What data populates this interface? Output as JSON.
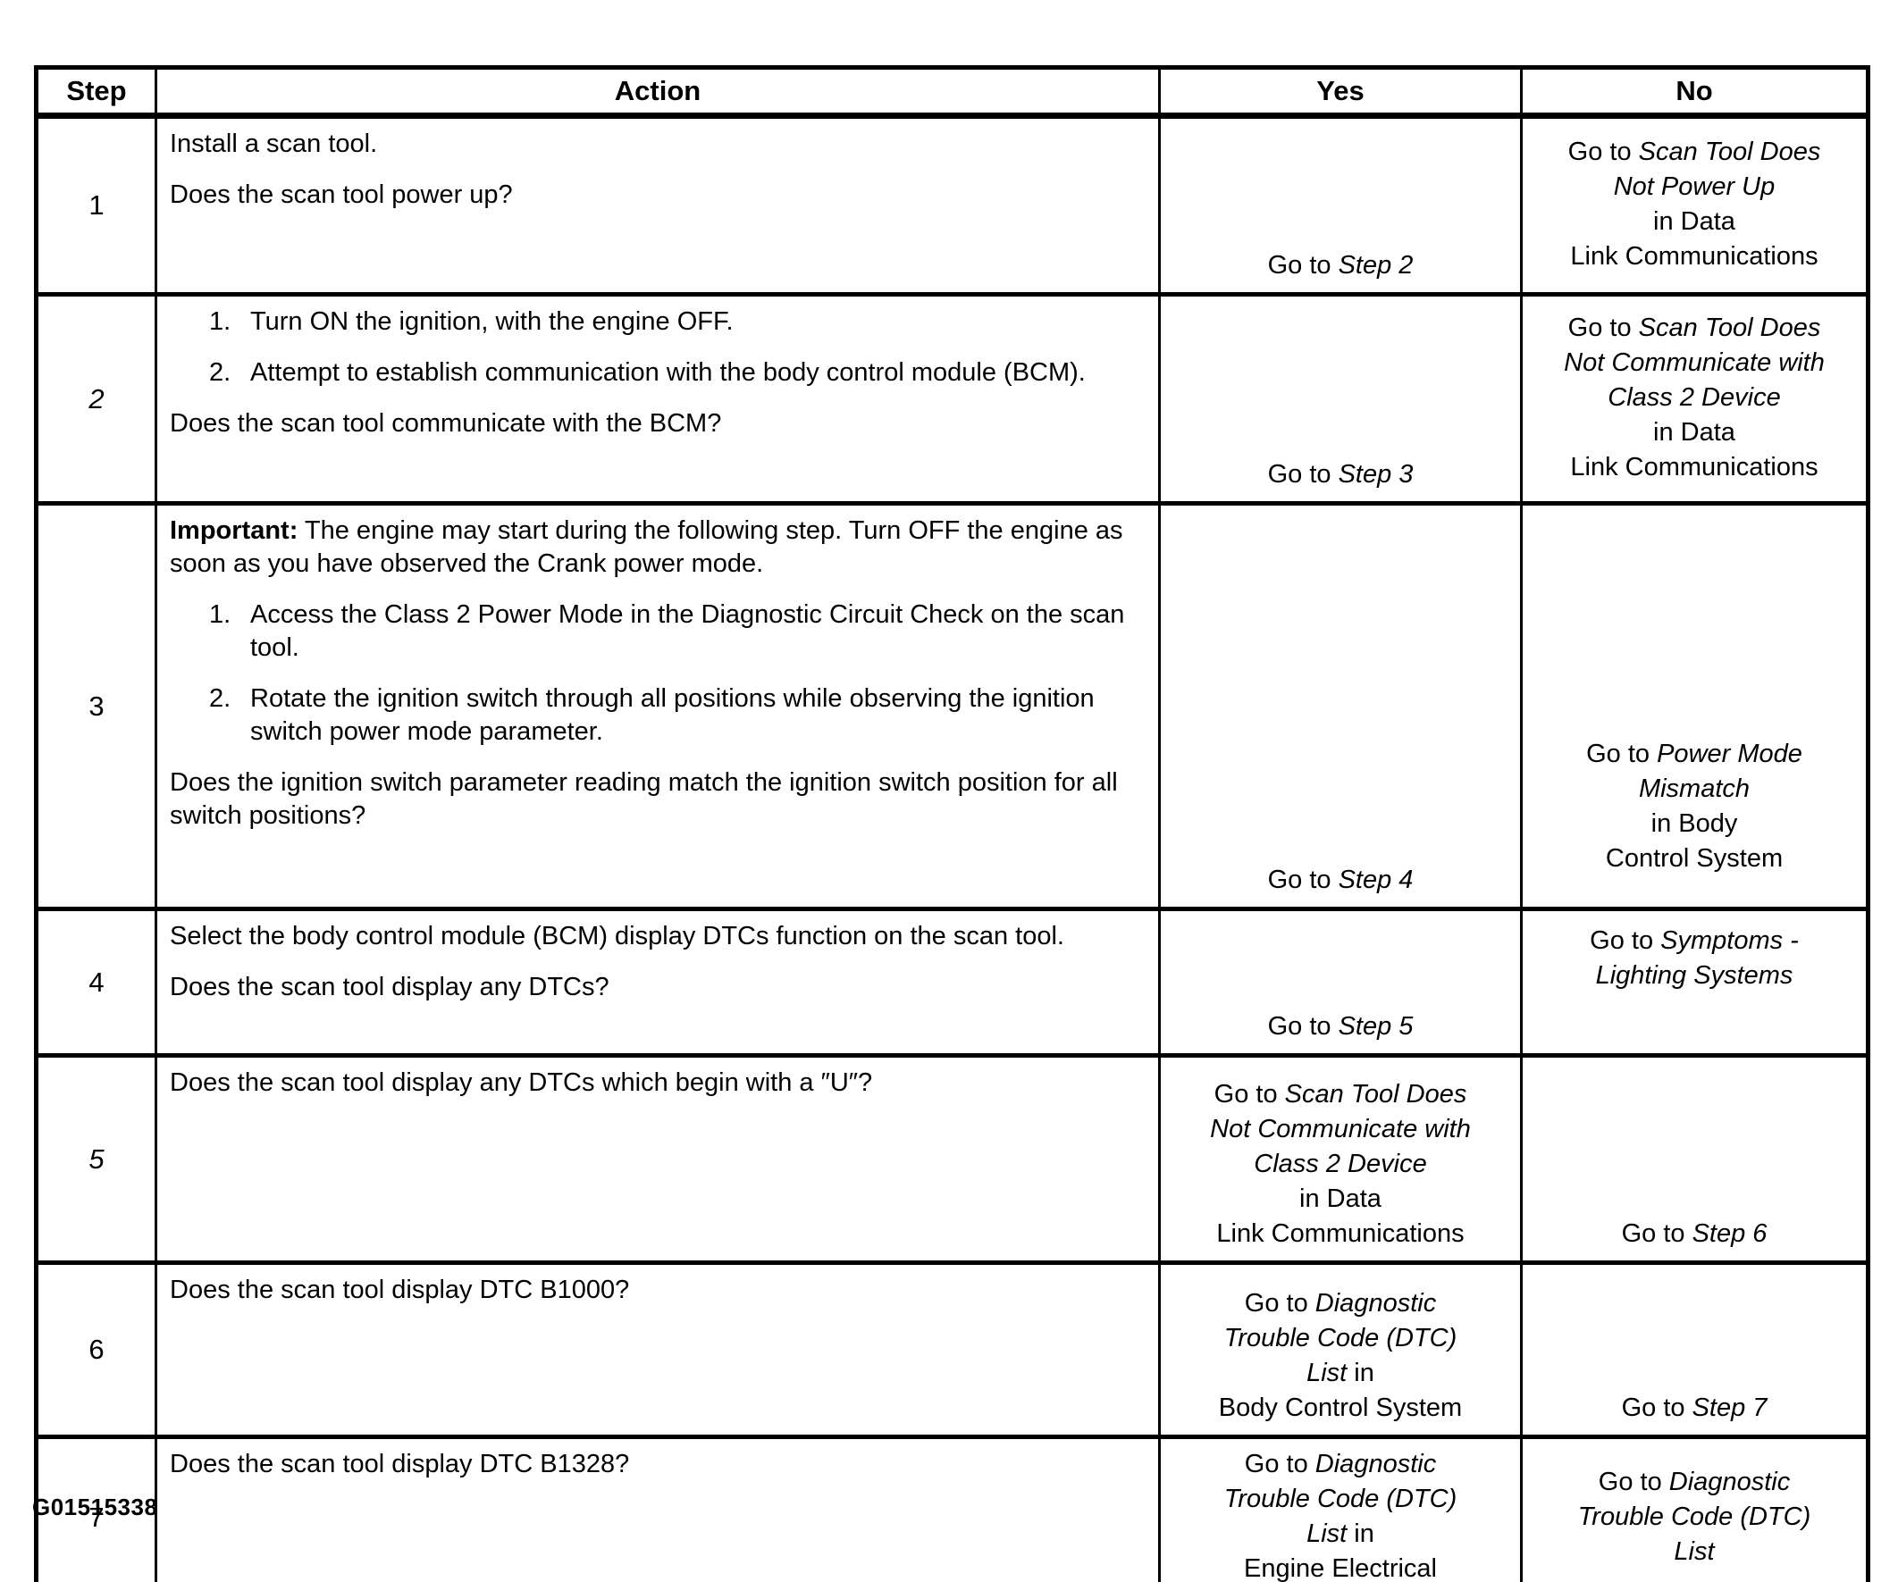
{
  "page": {
    "background_color": "#ffffff",
    "ink_color": "#000000"
  },
  "figure_label": "G01515338",
  "table": {
    "headers": {
      "step": "Step",
      "action": "Action",
      "yes": "Yes",
      "no": "No"
    },
    "rows": [
      {
        "step": "1",
        "step_italic": false,
        "action": [
          {
            "kind": "p",
            "seg": [
              {
                "t": "Install a scan tool."
              }
            ]
          },
          {
            "kind": "p",
            "seg": [
              {
                "t": "Does the scan tool power up?"
              }
            ]
          }
        ],
        "yes": [
          [
            {
              "t": "Go to "
            },
            {
              "t": "Step 2",
              "i": true
            }
          ]
        ],
        "no": [
          [
            {
              "t": "Go to "
            },
            {
              "t": "Scan Tool Does",
              "i": true
            }
          ],
          [
            {
              "t": "Not Power Up",
              "i": true
            }
          ],
          [
            {
              "t": "in Data"
            }
          ],
          [
            {
              "t": "Link Communications"
            }
          ]
        ]
      },
      {
        "step": "2",
        "step_italic": true,
        "action": [
          {
            "kind": "li",
            "num": "1.",
            "seg": [
              {
                "t": "Turn ON the ignition, with the engine OFF."
              }
            ]
          },
          {
            "kind": "li",
            "num": "2.",
            "seg": [
              {
                "t": "Attempt to establish communication with the body control module (BCM)."
              }
            ]
          },
          {
            "kind": "p",
            "seg": [
              {
                "t": "Does the scan tool communicate with the BCM?"
              }
            ]
          }
        ],
        "yes": [
          [
            {
              "t": "Go to "
            },
            {
              "t": "Step 3",
              "i": true
            }
          ]
        ],
        "no": [
          [
            {
              "t": "Go to "
            },
            {
              "t": "Scan Tool Does",
              "i": true
            }
          ],
          [
            {
              "t": "Not Communicate with",
              "i": true
            }
          ],
          [
            {
              "t": "Class 2 Device",
              "i": true
            }
          ],
          [
            {
              "t": "in Data"
            }
          ],
          [
            {
              "t": "Link Communications"
            }
          ]
        ]
      },
      {
        "step": "3",
        "step_italic": false,
        "action": [
          {
            "kind": "p",
            "seg": [
              {
                "t": "Important:",
                "b": true
              },
              {
                "t": " The engine may start during the following step. Turn OFF the engine as soon as you have observed the Crank power mode."
              }
            ]
          },
          {
            "kind": "li",
            "num": "1.",
            "seg": [
              {
                "t": "Access the Class 2 Power Mode in the Diagnostic Circuit Check on the scan tool."
              }
            ]
          },
          {
            "kind": "li",
            "num": "2.",
            "seg": [
              {
                "t": "Rotate the ignition switch through all positions while observing the ignition switch power mode parameter."
              }
            ]
          },
          {
            "kind": "p",
            "seg": [
              {
                "t": "Does the ignition switch parameter reading match the ignition switch position for all switch positions?"
              }
            ]
          }
        ],
        "yes": [
          [
            {
              "t": "Go to "
            },
            {
              "t": "Step 4",
              "i": true
            }
          ]
        ],
        "no": [
          [
            {
              "t": "Go to "
            },
            {
              "t": "Power Mode",
              "i": true
            }
          ],
          [
            {
              "t": "Mismatch",
              "i": true
            }
          ],
          [
            {
              "t": "in Body"
            }
          ],
          [
            {
              "t": "Control System"
            }
          ]
        ]
      },
      {
        "step": "4",
        "step_italic": false,
        "action": [
          {
            "kind": "p",
            "seg": [
              {
                "t": "Select the body control module (BCM) display DTCs function on the scan tool."
              }
            ]
          },
          {
            "kind": "p",
            "seg": [
              {
                "t": "Does the scan tool display any DTCs?"
              }
            ]
          }
        ],
        "yes": [
          [
            {
              "t": "Go to "
            },
            {
              "t": "Step 5",
              "i": true
            }
          ]
        ],
        "no": [
          [
            {
              "t": "Go to "
            },
            {
              "t": "Symptoms -",
              "i": true
            }
          ],
          [
            {
              "t": "Lighting Systems",
              "i": true
            }
          ]
        ]
      },
      {
        "step": "5",
        "step_italic": true,
        "action": [
          {
            "kind": "p",
            "seg": [
              {
                "t": "Does the scan tool display any DTCs which begin with a ″U″?"
              }
            ]
          }
        ],
        "yes": [
          [
            {
              "t": "Go to "
            },
            {
              "t": "Scan Tool Does",
              "i": true
            }
          ],
          [
            {
              "t": "Not Communicate with",
              "i": true
            }
          ],
          [
            {
              "t": "Class 2 Device",
              "i": true
            }
          ],
          [
            {
              "t": "in Data"
            }
          ],
          [
            {
              "t": "Link Communications"
            }
          ]
        ],
        "no": [
          [
            {
              "t": "Go to "
            },
            {
              "t": "Step 6",
              "i": true
            }
          ]
        ]
      },
      {
        "step": "6",
        "step_italic": false,
        "action": [
          {
            "kind": "p",
            "seg": [
              {
                "t": "Does the scan tool display DTC B1000?"
              }
            ]
          }
        ],
        "yes": [
          [
            {
              "t": "Go to "
            },
            {
              "t": "Diagnostic",
              "i": true
            }
          ],
          [
            {
              "t": "Trouble Code (DTC)",
              "i": true
            }
          ],
          [
            {
              "t": "List",
              "i": true
            },
            {
              "t": " in"
            }
          ],
          [
            {
              "t": "Body Control System"
            }
          ]
        ],
        "no": [
          [
            {
              "t": "Go to "
            },
            {
              "t": "Step 7",
              "i": true
            }
          ]
        ]
      },
      {
        "step": "7",
        "step_italic": false,
        "action": [
          {
            "kind": "p",
            "seg": [
              {
                "t": "Does the scan tool display DTC B1328?"
              }
            ]
          }
        ],
        "yes": [
          [
            {
              "t": "Go to "
            },
            {
              "t": "Diagnostic",
              "i": true
            }
          ],
          [
            {
              "t": "Trouble Code (DTC)",
              "i": true
            }
          ],
          [
            {
              "t": "List",
              "i": true
            },
            {
              "t": " in"
            }
          ],
          [
            {
              "t": "Engine Electrical"
            }
          ]
        ],
        "no": [
          [
            {
              "t": "Go to "
            },
            {
              "t": "Diagnostic",
              "i": true
            }
          ],
          [
            {
              "t": "Trouble Code (DTC)",
              "i": true
            }
          ],
          [
            {
              "t": "List",
              "i": true
            }
          ]
        ]
      }
    ]
  }
}
